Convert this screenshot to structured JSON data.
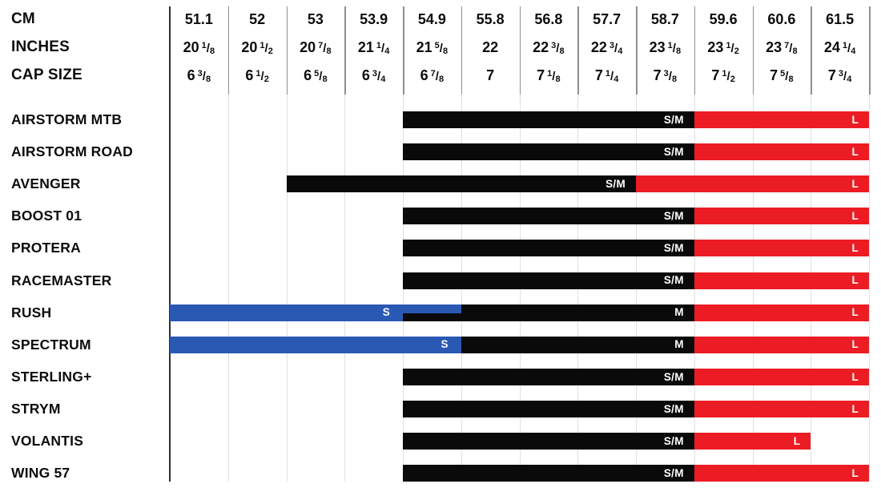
{
  "palette": {
    "black": "#0a0a0a",
    "red": "#EC1C24",
    "blue": "#2A59B4",
    "axis_line": "#2e2e2e",
    "grid_header": "#8f8f8f",
    "grid_body": "#e0e0e0"
  },
  "header": {
    "row_labels": [
      "CM",
      "INCHES",
      "CAP SIZE"
    ],
    "columns": [
      {
        "cm": "51.1",
        "in_w": "20",
        "in_n": "1",
        "in_d": "8",
        "cap_w": "6",
        "cap_n": "3",
        "cap_d": "8"
      },
      {
        "cm": "52",
        "in_w": "20",
        "in_n": "1",
        "in_d": "2",
        "cap_w": "6",
        "cap_n": "1",
        "cap_d": "2"
      },
      {
        "cm": "53",
        "in_w": "20",
        "in_n": "7",
        "in_d": "8",
        "cap_w": "6",
        "cap_n": "5",
        "cap_d": "8"
      },
      {
        "cm": "53.9",
        "in_w": "21",
        "in_n": "1",
        "in_d": "4",
        "cap_w": "6",
        "cap_n": "3",
        "cap_d": "4"
      },
      {
        "cm": "54.9",
        "in_w": "21",
        "in_n": "5",
        "in_d": "8",
        "cap_w": "6",
        "cap_n": "7",
        "cap_d": "8"
      },
      {
        "cm": "55.8",
        "in_w": "22",
        "cap_w": "7"
      },
      {
        "cm": "56.8",
        "in_w": "22",
        "in_n": "3",
        "in_d": "8",
        "cap_w": "7",
        "cap_n": "1",
        "cap_d": "8"
      },
      {
        "cm": "57.7",
        "in_w": "22",
        "in_n": "3",
        "in_d": "4",
        "cap_w": "7",
        "cap_n": "1",
        "cap_d": "4"
      },
      {
        "cm": "58.7",
        "in_w": "23",
        "in_n": "1",
        "in_d": "8",
        "cap_w": "7",
        "cap_n": "3",
        "cap_d": "8"
      },
      {
        "cm": "59.6",
        "in_w": "23",
        "in_n": "1",
        "in_d": "2",
        "cap_w": "7",
        "cap_n": "1",
        "cap_d": "2"
      },
      {
        "cm": "60.6",
        "in_w": "23",
        "in_n": "7",
        "in_d": "8",
        "cap_w": "7",
        "cap_n": "5",
        "cap_d": "8"
      },
      {
        "cm": "61.5",
        "in_w": "24",
        "in_n": "1",
        "in_d": "4",
        "cap_w": "7",
        "cap_n": "3",
        "cap_d": "4"
      }
    ]
  },
  "rows": [
    {
      "label": "AIRSTORM MTB",
      "bars": [
        {
          "size": "S/M",
          "color": "black",
          "from": 4,
          "to": 9
        },
        {
          "size": "L",
          "color": "red",
          "from": 9,
          "to": 12
        }
      ]
    },
    {
      "label": "AIRSTORM ROAD",
      "bars": [
        {
          "size": "S/M",
          "color": "black",
          "from": 4,
          "to": 9
        },
        {
          "size": "L",
          "color": "red",
          "from": 9,
          "to": 12
        }
      ]
    },
    {
      "label": "AVENGER",
      "bars": [
        {
          "size": "S/M",
          "color": "black",
          "from": 2,
          "to": 8
        },
        {
          "size": "L",
          "color": "red",
          "from": 8,
          "to": 12
        }
      ]
    },
    {
      "label": "BOOST 01",
      "bars": [
        {
          "size": "S/M",
          "color": "black",
          "from": 4,
          "to": 9
        },
        {
          "size": "L",
          "color": "red",
          "from": 9,
          "to": 12
        }
      ]
    },
    {
      "label": "PROTERA",
      "bars": [
        {
          "size": "S/M",
          "color": "black",
          "from": 4,
          "to": 9
        },
        {
          "size": "L",
          "color": "red",
          "from": 9,
          "to": 12
        }
      ]
    },
    {
      "label": "RACEMASTER",
      "bars": [
        {
          "size": "S/M",
          "color": "black",
          "from": 4,
          "to": 9
        },
        {
          "size": "L",
          "color": "red",
          "from": 9,
          "to": 12
        }
      ]
    },
    {
      "label": "RUSH",
      "bars": [
        {
          "size": "S",
          "color": "blue",
          "from": 0,
          "to": 4
        },
        {
          "size": "",
          "color": "blue",
          "from": 4,
          "to": 5,
          "half": "top"
        },
        {
          "size": "",
          "color": "black",
          "from": 4,
          "to": 5,
          "half": "bottom"
        },
        {
          "size": "M",
          "color": "black",
          "from": 5,
          "to": 9
        },
        {
          "size": "L",
          "color": "red",
          "from": 9,
          "to": 12
        }
      ]
    },
    {
      "label": "SPECTRUM",
      "bars": [
        {
          "size": "S",
          "color": "blue",
          "from": 0,
          "to": 5
        },
        {
          "size": "M",
          "color": "black",
          "from": 5,
          "to": 9
        },
        {
          "size": "L",
          "color": "red",
          "from": 9,
          "to": 12
        }
      ]
    },
    {
      "label": "STERLING+",
      "bars": [
        {
          "size": "S/M",
          "color": "black",
          "from": 4,
          "to": 9
        },
        {
          "size": "L",
          "color": "red",
          "from": 9,
          "to": 12
        }
      ]
    },
    {
      "label": "STRYM",
      "bars": [
        {
          "size": "S/M",
          "color": "black",
          "from": 4,
          "to": 9
        },
        {
          "size": "L",
          "color": "red",
          "from": 9,
          "to": 12
        }
      ]
    },
    {
      "label": "VOLANTIS",
      "bars": [
        {
          "size": "S/M",
          "color": "black",
          "from": 4,
          "to": 9
        },
        {
          "size": "L",
          "color": "red",
          "from": 9,
          "to": 11
        }
      ]
    },
    {
      "label": "WING 57",
      "bars": [
        {
          "size": "S/M",
          "color": "black",
          "from": 4,
          "to": 9
        },
        {
          "size": "L",
          "color": "red",
          "from": 9,
          "to": 12
        }
      ]
    }
  ],
  "chart_data": {
    "type": "bar",
    "subtype": "horizontal-size-range",
    "title": "",
    "grid": true,
    "x_axis": {
      "cm": [
        "51.1",
        "52",
        "53",
        "53.9",
        "54.9",
        "55.8",
        "56.8",
        "57.7",
        "58.7",
        "59.6",
        "60.6",
        "61.5"
      ],
      "inches": [
        "20 1/8",
        "20 1/2",
        "20 7/8",
        "21 1/4",
        "21 5/8",
        "22",
        "22 3/8",
        "22 3/4",
        "23 1/8",
        "23 1/2",
        "23 7/8",
        "24 1/4"
      ],
      "cap_size": [
        "6 3/8",
        "6 1/2",
        "6 5/8",
        "6 3/4",
        "6 7/8",
        "7",
        "7 1/8",
        "7 1/4",
        "7 3/8",
        "7 1/2",
        "7 5/8",
        "7 3/4"
      ]
    },
    "size_colors": {
      "S": "#2A59B4",
      "M": "#0a0a0a",
      "S/M": "#0a0a0a",
      "L": "#EC1C24"
    },
    "models": [
      {
        "name": "AIRSTORM MTB",
        "sizes": [
          {
            "size": "S/M",
            "cm_range": [
              "54.9",
              "58.7"
            ]
          },
          {
            "size": "L",
            "cm_range": [
              "59.6",
              "61.5"
            ]
          }
        ]
      },
      {
        "name": "AIRSTORM ROAD",
        "sizes": [
          {
            "size": "S/M",
            "cm_range": [
              "54.9",
              "58.7"
            ]
          },
          {
            "size": "L",
            "cm_range": [
              "59.6",
              "61.5"
            ]
          }
        ]
      },
      {
        "name": "AVENGER",
        "sizes": [
          {
            "size": "S/M",
            "cm_range": [
              "53",
              "57.7"
            ]
          },
          {
            "size": "L",
            "cm_range": [
              "58.7",
              "61.5"
            ]
          }
        ]
      },
      {
        "name": "BOOST 01",
        "sizes": [
          {
            "size": "S/M",
            "cm_range": [
              "54.9",
              "58.7"
            ]
          },
          {
            "size": "L",
            "cm_range": [
              "59.6",
              "61.5"
            ]
          }
        ]
      },
      {
        "name": "PROTERA",
        "sizes": [
          {
            "size": "S/M",
            "cm_range": [
              "54.9",
              "58.7"
            ]
          },
          {
            "size": "L",
            "cm_range": [
              "59.6",
              "61.5"
            ]
          }
        ]
      },
      {
        "name": "RACEMASTER",
        "sizes": [
          {
            "size": "S/M",
            "cm_range": [
              "54.9",
              "58.7"
            ]
          },
          {
            "size": "L",
            "cm_range": [
              "59.6",
              "61.5"
            ]
          }
        ]
      },
      {
        "name": "RUSH",
        "sizes": [
          {
            "size": "S",
            "cm_range": [
              "51.1",
              "54.9"
            ]
          },
          {
            "size": "M",
            "cm_range": [
              "54.9",
              "58.7"
            ]
          },
          {
            "size": "L",
            "cm_range": [
              "59.6",
              "61.5"
            ]
          }
        ]
      },
      {
        "name": "SPECTRUM",
        "sizes": [
          {
            "size": "S",
            "cm_range": [
              "51.1",
              "54.9"
            ]
          },
          {
            "size": "M",
            "cm_range": [
              "55.8",
              "58.7"
            ]
          },
          {
            "size": "L",
            "cm_range": [
              "59.6",
              "61.5"
            ]
          }
        ]
      },
      {
        "name": "STERLING+",
        "sizes": [
          {
            "size": "S/M",
            "cm_range": [
              "54.9",
              "58.7"
            ]
          },
          {
            "size": "L",
            "cm_range": [
              "59.6",
              "61.5"
            ]
          }
        ]
      },
      {
        "name": "STRYM",
        "sizes": [
          {
            "size": "S/M",
            "cm_range": [
              "54.9",
              "58.7"
            ]
          },
          {
            "size": "L",
            "cm_range": [
              "59.6",
              "61.5"
            ]
          }
        ]
      },
      {
        "name": "VOLANTIS",
        "sizes": [
          {
            "size": "S/M",
            "cm_range": [
              "54.9",
              "58.7"
            ]
          },
          {
            "size": "L",
            "cm_range": [
              "59.6",
              "60.6"
            ]
          }
        ]
      },
      {
        "name": "WING 57",
        "sizes": [
          {
            "size": "S/M",
            "cm_range": [
              "54.9",
              "58.7"
            ]
          },
          {
            "size": "L",
            "cm_range": [
              "59.6",
              "61.5"
            ]
          }
        ]
      }
    ]
  }
}
